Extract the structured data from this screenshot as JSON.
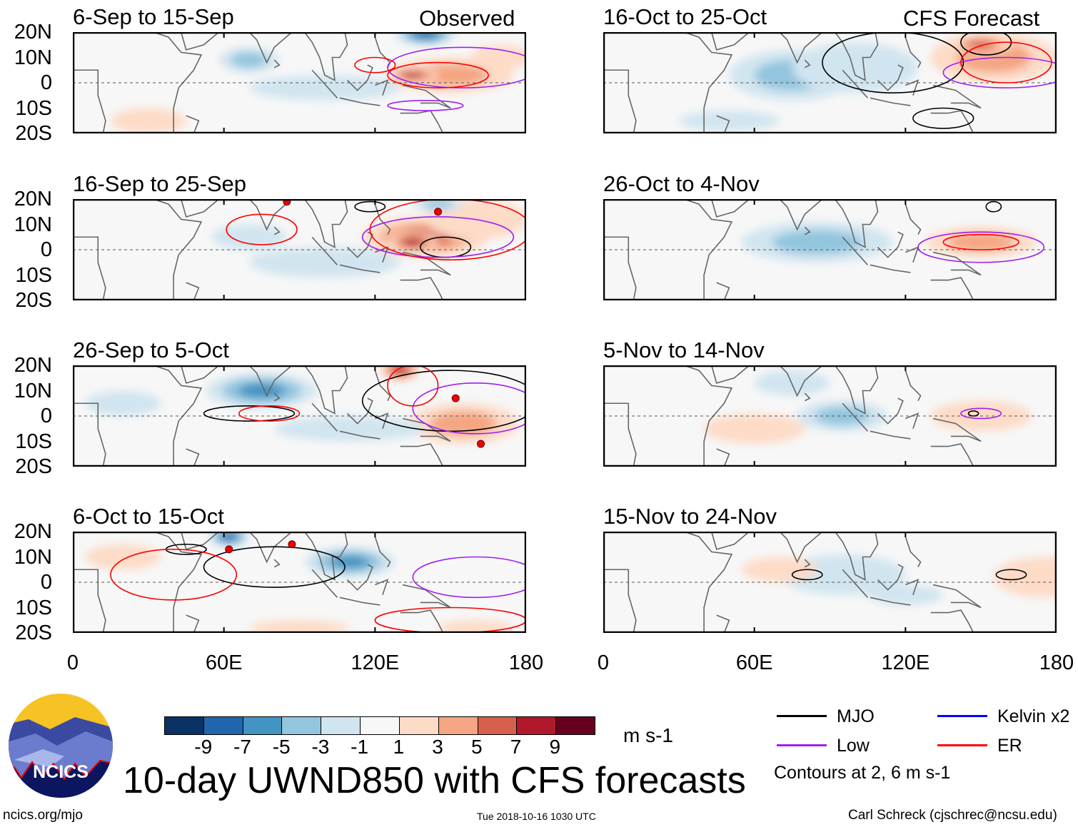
{
  "figure": {
    "title": "10-day UWND850 with CFS forecasts",
    "observed_label": "Observed",
    "forecast_label": "CFS Forecast",
    "url": "ncics.org/mjo",
    "timestamp": "Tue 2018-10-16 1030 UTC",
    "author": "Carl Schreck (cjschrec@ncsu.edu)",
    "logo_text": "NCICS"
  },
  "axes": {
    "lat_labels": [
      "20N",
      "10N",
      "0",
      "10S",
      "20S"
    ],
    "lon_labels": [
      "0",
      "60E",
      "120E",
      "180"
    ]
  },
  "colorbar": {
    "units": "m s-1",
    "labels": [
      "-9",
      "-7",
      "-5",
      "-3",
      "-1",
      "1",
      "3",
      "5",
      "7",
      "9"
    ],
    "colors": [
      "#0a3264",
      "#2166ac",
      "#4393c3",
      "#92c5de",
      "#d1e5f0",
      "#f7f7f7",
      "#fddbc7",
      "#f4a582",
      "#d6604d",
      "#b2182b",
      "#67001f"
    ]
  },
  "legend": {
    "items": [
      {
        "label": "MJO",
        "color": "#000000"
      },
      {
        "label": "Kelvin x2",
        "color": "#0000ff"
      },
      {
        "label": "Low",
        "color": "#a020f0"
      },
      {
        "label": "ER",
        "color": "#ff0000"
      }
    ],
    "note": "Contours at 2, 6 m s-1"
  },
  "panels": [
    {
      "title": "6-Sep to 15-Sep",
      "blobs": [
        [
          70,
          9,
          12,
          5,
          -5
        ],
        [
          140,
          19,
          12,
          4,
          -8
        ],
        [
          150,
          3,
          25,
          7,
          5
        ],
        [
          135,
          3,
          10,
          3,
          8
        ],
        [
          100,
          -2,
          30,
          5,
          -2
        ],
        [
          30,
          -15,
          15,
          5,
          2
        ],
        [
          170,
          10,
          12,
          5,
          3
        ]
      ],
      "mjo": [],
      "low": [
        [
          155,
          6,
          30,
          8
        ],
        [
          140,
          -9,
          15,
          2
        ]
      ],
      "er": [
        [
          145,
          3,
          20,
          5
        ],
        [
          120,
          7,
          8,
          3
        ]
      ]
    },
    {
      "title": "16-Sep to 25-Sep",
      "blobs": [
        [
          70,
          5,
          15,
          5,
          -3
        ],
        [
          140,
          5,
          25,
          8,
          6
        ],
        [
          135,
          3,
          10,
          4,
          9
        ],
        [
          160,
          12,
          20,
          8,
          3
        ],
        [
          100,
          -5,
          30,
          6,
          -2
        ],
        [
          145,
          18,
          10,
          3,
          -4
        ]
      ],
      "mjo": [
        [
          148,
          1,
          10,
          4
        ],
        [
          118,
          17,
          6,
          2
        ]
      ],
      "low": [
        [
          145,
          5,
          30,
          8
        ]
      ],
      "er": [
        [
          75,
          8,
          14,
          6
        ],
        [
          150,
          8,
          32,
          12
        ]
      ],
      "tc": [
        [
          85,
          19
        ],
        [
          145,
          15
        ]
      ]
    },
    {
      "title": "26-Sep to 5-Oct",
      "blobs": [
        [
          75,
          10,
          22,
          7,
          -7
        ],
        [
          130,
          18,
          8,
          4,
          9
        ],
        [
          155,
          -3,
          22,
          8,
          5
        ],
        [
          110,
          -5,
          30,
          5,
          -3
        ],
        [
          20,
          5,
          15,
          5,
          -2
        ]
      ],
      "mjo": [
        [
          70,
          1,
          18,
          3
        ],
        [
          150,
          6,
          35,
          12
        ]
      ],
      "low": [
        [
          160,
          3,
          25,
          10
        ]
      ],
      "er": [
        [
          78,
          1,
          12,
          3
        ],
        [
          135,
          12,
          10,
          8
        ]
      ],
      "tc": [
        [
          152,
          7
        ],
        [
          162,
          -11
        ]
      ]
    },
    {
      "title": "6-Oct to 15-Oct",
      "blobs": [
        [
          62,
          18,
          8,
          4,
          -8
        ],
        [
          110,
          8,
          18,
          6,
          -6
        ],
        [
          90,
          -18,
          20,
          3,
          3
        ],
        [
          160,
          -18,
          15,
          3,
          2
        ],
        [
          20,
          10,
          15,
          5,
          2
        ]
      ],
      "mjo": [
        [
          80,
          6,
          28,
          8
        ],
        [
          45,
          13,
          8,
          2
        ]
      ],
      "low": [
        [
          160,
          2,
          25,
          8
        ]
      ],
      "er": [
        [
          40,
          3,
          25,
          10
        ],
        [
          150,
          -15,
          30,
          5
        ]
      ],
      "tc": [
        [
          62,
          13
        ],
        [
          87,
          15
        ]
      ]
    },
    {
      "title": "16-Oct to 25-Oct",
      "blobs": [
        [
          75,
          3,
          25,
          10,
          -4
        ],
        [
          100,
          6,
          25,
          10,
          -3
        ],
        [
          155,
          10,
          25,
          10,
          4
        ],
        [
          150,
          15,
          12,
          4,
          6
        ],
        [
          50,
          -15,
          20,
          4,
          -2
        ]
      ],
      "mjo": [
        [
          115,
          8,
          28,
          12
        ],
        [
          135,
          -14,
          12,
          4
        ],
        [
          152,
          16,
          10,
          5
        ]
      ],
      "low": [
        [
          160,
          4,
          25,
          6
        ]
      ],
      "er": [
        [
          160,
          8,
          18,
          8
        ]
      ]
    },
    {
      "title": "26-Oct to 4-Nov",
      "blobs": [
        [
          85,
          3,
          30,
          8,
          -5
        ],
        [
          150,
          3,
          22,
          6,
          4
        ],
        [
          60,
          -10,
          20,
          5,
          -1
        ]
      ],
      "mjo": [
        [
          155,
          17,
          3,
          2
        ]
      ],
      "low": [
        [
          150,
          1,
          25,
          6
        ]
      ],
      "er": [
        [
          150,
          3,
          15,
          3
        ]
      ]
    },
    {
      "title": "5-Nov to 14-Nov",
      "blobs": [
        [
          95,
          0,
          18,
          6,
          -4
        ],
        [
          150,
          0,
          20,
          6,
          3
        ],
        [
          60,
          -5,
          20,
          6,
          2
        ],
        [
          75,
          13,
          15,
          5,
          -2
        ]
      ],
      "mjo": [
        [
          147,
          1,
          2,
          1
        ]
      ],
      "low": [
        [
          150,
          1,
          8,
          2
        ]
      ],
      "er": []
    },
    {
      "title": "15-Nov to 24-Nov",
      "blobs": [
        [
          95,
          3,
          25,
          8,
          -3
        ],
        [
          175,
          2,
          20,
          8,
          3
        ],
        [
          70,
          5,
          15,
          5,
          2
        ],
        [
          120,
          -5,
          15,
          4,
          -2
        ]
      ],
      "mjo": [
        [
          81,
          3,
          6,
          2
        ],
        [
          162,
          3,
          6,
          2
        ]
      ],
      "low": [],
      "er": []
    }
  ]
}
